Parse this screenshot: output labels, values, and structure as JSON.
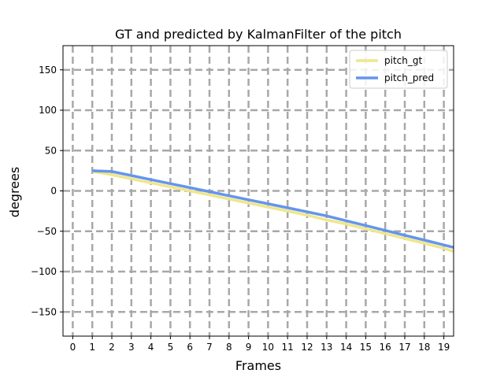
{
  "chart_data": {
    "type": "line",
    "title": "GT and predicted by KalmanFilter of the pitch",
    "xlabel": "Frames",
    "ylabel": "degrees",
    "xlim": [
      -0.5,
      19.5
    ],
    "ylim": [
      -180,
      180
    ],
    "xticks": [
      "0",
      "1",
      "2",
      "3",
      "4",
      "5",
      "6",
      "7",
      "8",
      "9",
      "10",
      "11",
      "12",
      "13",
      "14",
      "15",
      "16",
      "17",
      "18",
      "19"
    ],
    "yticks": [
      "150",
      "100",
      "50",
      "0",
      "−50",
      "−100",
      "−150"
    ],
    "grid": true,
    "legend_position": "top-right",
    "series": [
      {
        "name": "pitch_gt",
        "color": "#f0e68c",
        "x": [
          1,
          2,
          3,
          4,
          5,
          6,
          7,
          8,
          9,
          10,
          11,
          12,
          13,
          14,
          15,
          16,
          17,
          18,
          19,
          19.5
        ],
        "y": [
          24,
          20,
          15,
          10,
          5,
          0,
          -5,
          -10,
          -15,
          -20,
          -25,
          -30,
          -36,
          -41,
          -47,
          -53,
          -59,
          -65,
          -71,
          -75
        ]
      },
      {
        "name": "pitch_pred",
        "color": "#6495ed",
        "x": [
          1,
          2,
          3,
          4,
          5,
          6,
          7,
          8,
          9,
          10,
          11,
          12,
          13,
          14,
          15,
          16,
          17,
          18,
          19,
          19.5
        ],
        "y": [
          25,
          24,
          19,
          14,
          9,
          4,
          -1,
          -6,
          -11,
          -16,
          -21,
          -26,
          -31,
          -37,
          -43,
          -49,
          -55,
          -61,
          -67,
          -70
        ]
      }
    ]
  }
}
